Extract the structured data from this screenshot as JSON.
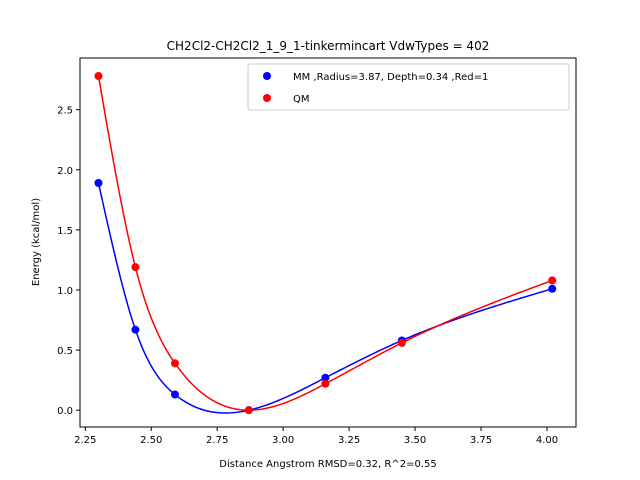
{
  "chart_data": {
    "type": "line",
    "title": "CH2Cl2-CH2Cl2_1_9_1-tinkermincart VdwTypes = 402",
    "xlabel": "Distance Angstrom RMSD=0.32, R^2=0.55",
    "ylabel": "Energy (kcal/mol)",
    "xlim": [
      2.23,
      4.11
    ],
    "ylim": [
      -0.14,
      2.93
    ],
    "xticks": [
      2.25,
      2.5,
      2.75,
      3.0,
      3.25,
      3.5,
      3.75,
      4.0
    ],
    "xtick_labels": [
      "2.25",
      "2.50",
      "2.75",
      "3.00",
      "3.25",
      "3.50",
      "3.75",
      "4.00"
    ],
    "yticks": [
      0.0,
      0.5,
      1.0,
      1.5,
      2.0,
      2.5
    ],
    "ytick_labels": [
      "0.0",
      "0.5",
      "1.0",
      "1.5",
      "2.0",
      "2.5"
    ],
    "legend_position": "top-right",
    "series": [
      {
        "name": "MM ,Radius=3.87, Depth=0.34 ,Red=1",
        "color": "#0000ff",
        "x": [
          2.3,
          2.44,
          2.59,
          2.87,
          3.16,
          3.45,
          4.02
        ],
        "y": [
          1.89,
          0.67,
          0.13,
          0.0,
          0.27,
          0.58,
          1.01
        ]
      },
      {
        "name": "QM",
        "color": "#ff0000",
        "x": [
          2.3,
          2.44,
          2.59,
          2.87,
          3.16,
          3.45,
          4.02
        ],
        "y": [
          2.78,
          1.19,
          0.39,
          0.0,
          0.22,
          0.56,
          1.08
        ]
      }
    ]
  }
}
